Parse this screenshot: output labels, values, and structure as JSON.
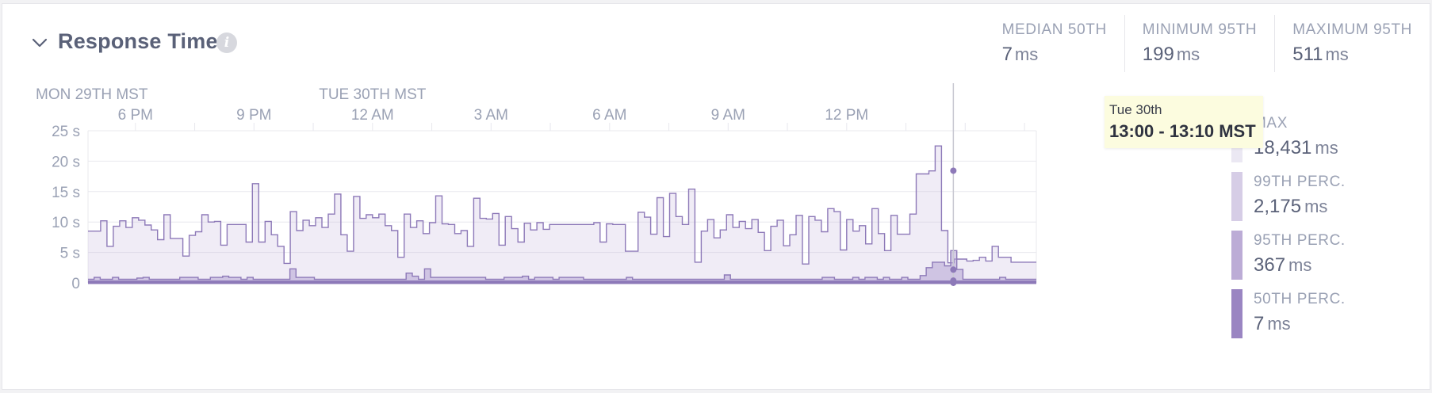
{
  "panel": {
    "title": "Response Time",
    "info_icon": "info-icon",
    "collapse_icon": "chevron-down-icon"
  },
  "stats": [
    {
      "label": "MEDIAN 50TH",
      "value": "7",
      "unit": "ms"
    },
    {
      "label": "MINIMUM 95TH",
      "value": "199",
      "unit": "ms"
    },
    {
      "label": "MAXIMUM 95TH",
      "value": "511",
      "unit": "ms"
    }
  ],
  "tooltip": {
    "date": "Tue 30th",
    "range": "13:00 - 13:10 MST"
  },
  "legend": [
    {
      "label": "MAX",
      "value": "18,431",
      "unit": "ms",
      "color": "#ebe8f3"
    },
    {
      "label": "99TH PERC.",
      "value": "2,175",
      "unit": "ms",
      "color": "#d6cde6"
    },
    {
      "label": "95TH PERC.",
      "value": "367",
      "unit": "ms",
      "color": "#bcacd6"
    },
    {
      "label": "50TH PERC.",
      "value": "7",
      "unit": "ms",
      "color": "#9a85c2"
    }
  ],
  "colors": {
    "line": "#8d79b8",
    "grid": "#e8e8ee",
    "axis_text": "#9aa1b4",
    "cursor": "#c9c9d2"
  },
  "chart_data": {
    "type": "area",
    "step": true,
    "day_labels": [
      {
        "label": "MON 29TH MST",
        "hour": 15.0
      },
      {
        "label": "TUE 30TH MST",
        "hour": 24.0
      }
    ],
    "x_ticks": [
      {
        "label": "6 PM",
        "hour": 18
      },
      {
        "label": "9 PM",
        "hour": 21
      },
      {
        "label": "12 AM",
        "hour": 24
      },
      {
        "label": "3 AM",
        "hour": 27
      },
      {
        "label": "6 AM",
        "hour": 30
      },
      {
        "label": "9 AM",
        "hour": 33
      },
      {
        "label": "12 PM",
        "hour": 36
      }
    ],
    "x_range_hours": [
      16.8,
      40.8
    ],
    "y_ticks": [
      {
        "label": "25 s",
        "value": 25
      },
      {
        "label": "20 s",
        "value": 20
      },
      {
        "label": "15 s",
        "value": 15
      },
      {
        "label": "10 s",
        "value": 10
      },
      {
        "label": "5 s",
        "value": 5
      },
      {
        "label": "0",
        "value": 0
      }
    ],
    "ylim": [
      0,
      25
    ],
    "cursor_hour": 38.7,
    "cursor_values": {
      "max": 18.43,
      "p99": 2.175,
      "p95": 0.367,
      "p50": 0.007
    },
    "series": [
      {
        "name": "MAX",
        "values": [
          8.5,
          8.5,
          10.2,
          6,
          9.3,
          10.2,
          9.1,
          10.7,
          10.3,
          9.5,
          8.7,
          7.1,
          11.2,
          7.3,
          7.3,
          4.4,
          7.8,
          8.4,
          11.2,
          10,
          10.1,
          6.2,
          9.6,
          9.6,
          9.6,
          6.7,
          16.3,
          6.7,
          10.1,
          7.9,
          6,
          3.2,
          11.7,
          8.6,
          10.3,
          9.4,
          10.7,
          9.1,
          11.3,
          14.6,
          7.9,
          5.2,
          14.2,
          10.6,
          11.2,
          10.7,
          11.3,
          9.4,
          8.6,
          4.2,
          11.3,
          9.1,
          10.2,
          8.1,
          9.9,
          14.3,
          9.7,
          9.6,
          8.1,
          8.6,
          6,
          13.9,
          10.6,
          10.5,
          11.4,
          6.2,
          10.9,
          8.9,
          6.7,
          9.8,
          8.7,
          9.9,
          8.8,
          9.6,
          9.6,
          9.6,
          9.6,
          9.6,
          9.6,
          9.6,
          9.9,
          6.7,
          9.7,
          9.6,
          9.6,
          5.2,
          5.2,
          11.6,
          10.8,
          8,
          14,
          7.6,
          14.7,
          10.9,
          9.6,
          15.4,
          3.4,
          8.5,
          10.4,
          7.4,
          8.7,
          11.2,
          9.1,
          10.1,
          8.9,
          10.4,
          8.3,
          5.3,
          9.3,
          10.3,
          6.1,
          7.9,
          11.1,
          3.1,
          10.9,
          10.3,
          8.4,
          12.2,
          11.7,
          5.4,
          10.4,
          8.5,
          9.4,
          6.4,
          12.2,
          8.1,
          5.3,
          11.1,
          8,
          8,
          11.3,
          17.9,
          17.9,
          18.4,
          22.5,
          8.6,
          3.3,
          3.9,
          3.9,
          3.6,
          3.7,
          4.2,
          3.6,
          6,
          4.2,
          4.2,
          3.4,
          3.4,
          3.4,
          3.4
        ]
      },
      {
        "name": "99TH PERC.",
        "values": [
          0.6,
          0.9,
          0.6,
          0.6,
          0.9,
          0.6,
          0.6,
          0.6,
          0.8,
          0.9,
          0.6,
          0.6,
          0.6,
          0.6,
          0.6,
          0.9,
          0.9,
          0.9,
          0.6,
          0.6,
          0.9,
          0.9,
          1.1,
          0.9,
          0.9,
          0.6,
          0.9,
          0.6,
          0.6,
          0.6,
          0.6,
          0.6,
          0.6,
          2.3,
          0.9,
          0.9,
          0.9,
          0.6,
          0.6,
          0.6,
          0.6,
          0.6,
          0.6,
          0.6,
          0.6,
          0.6,
          0.6,
          0.6,
          0.6,
          0.6,
          0.6,
          0.6,
          1.6,
          1.1,
          0.6,
          2.3,
          0.9,
          0.9,
          0.9,
          0.9,
          0.9,
          0.9,
          0.9,
          0.9,
          0.9,
          0.6,
          0.6,
          0.6,
          0.9,
          0.9,
          0.9,
          1.1,
          0.6,
          0.9,
          0.9,
          0.9,
          0.6,
          0.9,
          0.9,
          0.9,
          0.9,
          0.6,
          0.6,
          0.6,
          0.6,
          0.6,
          0.6,
          0.6,
          0.9,
          0.6,
          0.6,
          0.6,
          0.6,
          0.6,
          0.6,
          0.6,
          0.6,
          0.6,
          0.6,
          0.6,
          0.6,
          0.6,
          0.6,
          0.6,
          1.3,
          0.6,
          0.6,
          0.6,
          0.6,
          0.6,
          0.6,
          0.6,
          0.6,
          0.6,
          0.6,
          0.6,
          0.6,
          0.6,
          0.6,
          0.6,
          0.9,
          0.9,
          0.6,
          0.6,
          0.6,
          0.9,
          0.6,
          0.9,
          0.9,
          0.6,
          0.9,
          0.6,
          0.6,
          0.9,
          0.6,
          0.6,
          1.2,
          2.5,
          3.4,
          3.4,
          2.8,
          5.3,
          2.2,
          0.6,
          0.6,
          0.6,
          0.6,
          0.6,
          0.6,
          0.9,
          0.6,
          0.6,
          0.6,
          0.6,
          0.6
        ]
      },
      {
        "name": "95TH PERC.",
        "values": [
          0.3,
          0.3,
          0.3,
          0.3,
          0.3,
          0.3,
          0.3,
          0.3,
          0.3,
          0.3,
          0.3,
          0.3,
          0.3,
          0.3,
          0.3,
          0.3,
          0.3,
          0.3,
          0.3,
          0.3,
          0.3,
          0.3,
          0.3,
          0.3,
          0.3,
          0.3,
          0.3,
          0.3,
          0.3,
          0.3,
          0.3,
          0.3,
          0.3,
          0.3,
          0.3,
          0.3,
          0.3,
          0.3,
          0.3,
          0.3,
          0.3,
          0.3,
          0.3,
          0.3,
          0.3,
          0.3,
          0.3,
          0.3,
          0.3,
          0.3,
          0.3,
          0.3,
          0.3,
          0.3,
          0.3,
          0.3,
          0.3,
          0.3,
          0.3,
          0.3,
          0.3,
          0.3,
          0.3,
          0.3,
          0.3,
          0.3,
          0.3,
          0.3,
          0.3,
          0.3,
          0.3,
          0.3,
          0.3,
          0.3,
          0.3,
          0.3,
          0.3,
          0.3,
          0.3,
          0.3,
          0.3,
          0.3,
          0.3,
          0.3,
          0.3,
          0.3,
          0.3,
          0.3,
          0.3,
          0.3,
          0.3,
          0.3,
          0.3,
          0.3,
          0.3,
          0.3,
          0.3,
          0.3,
          0.3,
          0.3,
          0.3,
          0.3,
          0.3,
          0.3,
          0.3,
          0.3,
          0.3,
          0.3,
          0.3,
          0.3,
          0.3,
          0.3,
          0.3,
          0.3,
          0.3,
          0.3,
          0.3,
          0.3,
          0.3,
          0.3,
          0.3,
          0.3,
          0.3,
          0.3,
          0.3,
          0.3,
          0.3,
          0.3,
          0.3,
          0.3,
          0.3,
          0.3,
          0.3,
          0.3,
          0.3,
          0.3,
          0.3,
          0.3,
          0.3,
          0.3,
          0.3,
          0.3,
          0.3,
          0.3,
          0.3,
          0.3,
          0.3,
          0.3,
          0.3,
          0.3
        ]
      },
      {
        "name": "50TH PERC.",
        "values": [
          0.01,
          0.01,
          0.01,
          0.01,
          0.01,
          0.01,
          0.01,
          0.01,
          0.01,
          0.01,
          0.01,
          0.01,
          0.01,
          0.01,
          0.01,
          0.01,
          0.01,
          0.01,
          0.01,
          0.01,
          0.01,
          0.01,
          0.01,
          0.01,
          0.01,
          0.01,
          0.01,
          0.01,
          0.01,
          0.01,
          0.01,
          0.01,
          0.01,
          0.01,
          0.01,
          0.01,
          0.01,
          0.01,
          0.01,
          0.01,
          0.01,
          0.01,
          0.01,
          0.01,
          0.01,
          0.01,
          0.01,
          0.01,
          0.01,
          0.01,
          0.01,
          0.01,
          0.01,
          0.01,
          0.01,
          0.01,
          0.01,
          0.01,
          0.01,
          0.01,
          0.01,
          0.01,
          0.01,
          0.01,
          0.01,
          0.01,
          0.01,
          0.01,
          0.01,
          0.01,
          0.01,
          0.01,
          0.01,
          0.01,
          0.01,
          0.01,
          0.01,
          0.01,
          0.01,
          0.01,
          0.01,
          0.01,
          0.01,
          0.01,
          0.01,
          0.01,
          0.01,
          0.01,
          0.01,
          0.01,
          0.01,
          0.01,
          0.01,
          0.01,
          0.01,
          0.01,
          0.01,
          0.01,
          0.01,
          0.01,
          0.01,
          0.01,
          0.01,
          0.01,
          0.01,
          0.01,
          0.01,
          0.01,
          0.01,
          0.01,
          0.01,
          0.01,
          0.01,
          0.01,
          0.01,
          0.01,
          0.01,
          0.01,
          0.01,
          0.01,
          0.01,
          0.01,
          0.01,
          0.01,
          0.01,
          0.01,
          0.01,
          0.01,
          0.01,
          0.01,
          0.01,
          0.01,
          0.01,
          0.01,
          0.01,
          0.01,
          0.01,
          0.01,
          0.01,
          0.01,
          0.01,
          0.01,
          0.01,
          0.01,
          0.01,
          0.01,
          0.01,
          0.01,
          0.01,
          0.01,
          0.01,
          0.01
        ]
      }
    ]
  }
}
